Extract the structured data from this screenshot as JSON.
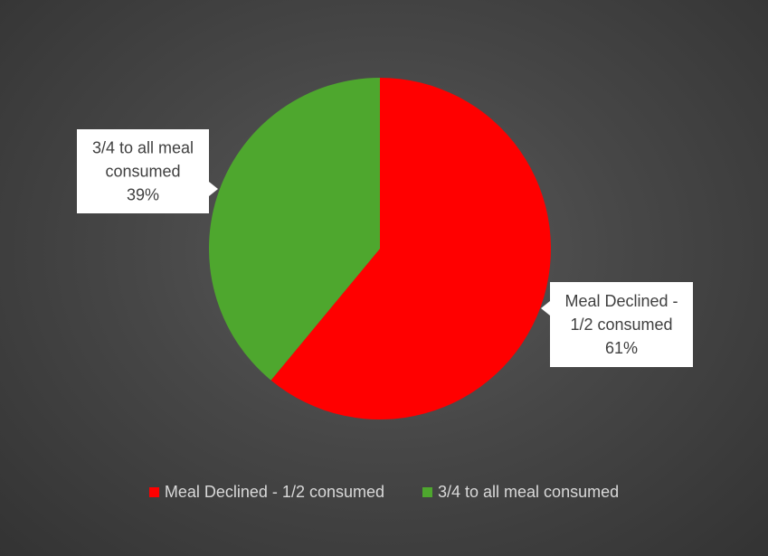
{
  "chart_data": {
    "type": "pie",
    "title": "",
    "series": [
      {
        "name": "",
        "slices": [
          {
            "label": "Meal Declined - 1/2 consumed",
            "callout_lines": [
              "Meal Declined -",
              "1/2 consumed"
            ],
            "percent_label": "61%",
            "value": 61,
            "color": "#ff0000"
          },
          {
            "label": "3/4 to all meal consumed",
            "callout_lines": [
              "3/4 to all meal",
              "consumed"
            ],
            "percent_label": "39%",
            "value": 39,
            "color": "#4ea72e"
          }
        ]
      }
    ],
    "legend_position": "bottom",
    "start_angle": "12 o'clock",
    "direction": "clockwise"
  },
  "colors": {
    "background": "#3a3a3a",
    "callout_fill": "#ffffff",
    "callout_text": "#404040",
    "legend_text": "#d9d9d9"
  }
}
